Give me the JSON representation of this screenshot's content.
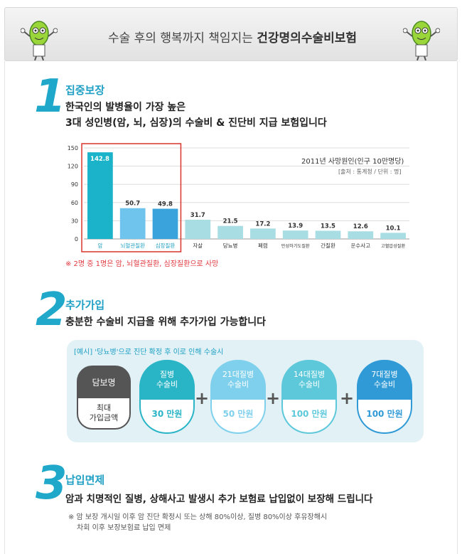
{
  "header": {
    "title_plain": "수술 후의 행복까지 책임지는",
    "title_bold": "건강명의수술비보험"
  },
  "section1": {
    "number": "1",
    "title": "집중보장",
    "line1": "한국인의 발병율이 가장 높은",
    "line2": "3대 성인병(암, 뇌, 심장)의 수술비 & 진단비 지급 보험입니다",
    "chart_note": "2011년 사망원인(인구 10만명당)",
    "chart_source": "[출처 : 통계청 / 단위 : 명]",
    "foot_note": "※ 2명 중 1명은 암, 뇌혈관질환, 심장질환으로 사망"
  },
  "chart_data": {
    "type": "bar",
    "categories": [
      "암",
      "뇌혈관질환",
      "심장질환",
      "자살",
      "당뇨병",
      "폐렴",
      "만성하기도질환",
      "간질환",
      "운수사고",
      "고혈압성질환"
    ],
    "values": [
      142.8,
      50.7,
      49.8,
      31.7,
      21.5,
      17.2,
      13.9,
      13.5,
      12.6,
      10.1
    ],
    "value_labels": [
      "142.8",
      "50.7",
      "49.8",
      "31.7",
      "21.5",
      "17.2",
      "13.9",
      "13.5",
      "12.6",
      "10.1"
    ],
    "yticks": [
      "0",
      "30",
      "60",
      "90",
      "120",
      "150"
    ],
    "ylim": [
      0,
      150
    ],
    "title": "2011년 사망원인(인구 10만명당)",
    "colors": {
      "highlight1": "#1bb3c9",
      "highlight2": "#6ec4ec",
      "highlight3": "#3aa3dc",
      "other": "#a9dde4",
      "box": "#d9342b"
    }
  },
  "section2": {
    "number": "2",
    "title": "추가가입",
    "subtitle": "충분한 수술비 지급을 위해 추가가입 가능합니다",
    "example": "[예시] '당뇨병'으로 진단 확정 후 이로 인해 수술시",
    "left_top": "담보명",
    "left_bottom_line1": "최대",
    "left_bottom_line2": "가입금액",
    "cards": [
      {
        "line1": "질병",
        "line2": "수술비",
        "amount": "30 만원",
        "color": "#29b5c6"
      },
      {
        "line1": "21대질병",
        "line2": "수술비",
        "amount": "50 만원",
        "color": "#7fd0ec"
      },
      {
        "line1": "14대질병",
        "line2": "수술비",
        "amount": "100 만원",
        "color": "#5cc8da"
      },
      {
        "line1": "7대질병",
        "line2": "수술비",
        "amount": "100 만원",
        "color": "#2f9ad6"
      }
    ]
  },
  "section3": {
    "number": "3",
    "title": "납입면제",
    "subtitle": "암과 치명적인 질병, 상해사고 발생시 추가 보험료 납입없이 보장해 드립니다",
    "note_line1": "※ 암 보장 개시일 이후 암 진단 확정시 또는 상해 80%이상, 질병 80%이상 후유장해시",
    "note_line2": "차회 이후 보장보험료 납입 면제"
  }
}
